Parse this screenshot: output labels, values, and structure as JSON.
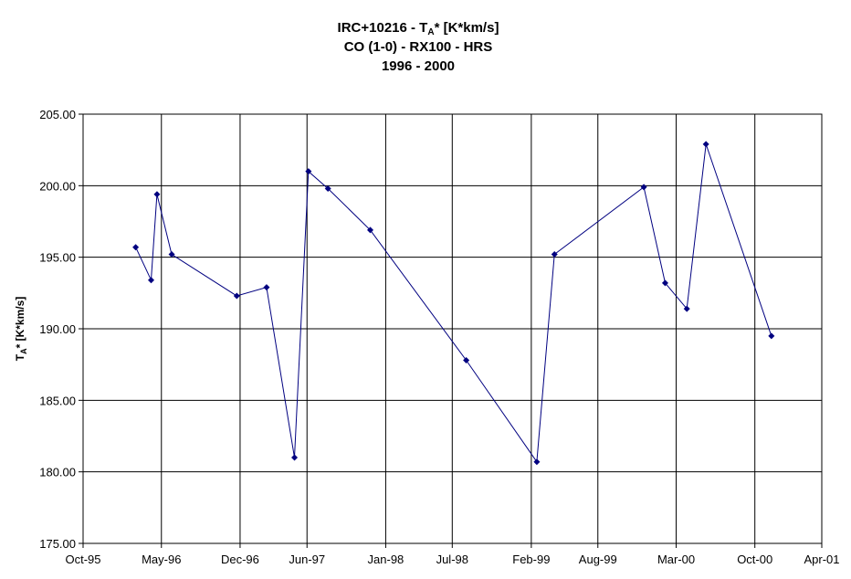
{
  "chart_data": {
    "type": "line",
    "title_lines": [
      {
        "pre": "IRC+10216 - T",
        "sub": "A",
        "post": "* [K*km/s]"
      },
      {
        "pre": "CO (1-0) - RX100 - HRS",
        "sub": "",
        "post": ""
      },
      {
        "pre": "1996 - 2000",
        "sub": "",
        "post": ""
      }
    ],
    "ylabel": {
      "pre": "T",
      "sub": "A",
      "post": "* [K*km/s]"
    },
    "ylim": [
      175,
      205
    ],
    "yticks": [
      "175.00",
      "180.00",
      "185.00",
      "190.00",
      "195.00",
      "200.00",
      "205.00"
    ],
    "xticks": [
      "Oct-95",
      "May-96",
      "Dec-96",
      "Jun-97",
      "Jan-98",
      "Jul-98",
      "Feb-99",
      "Aug-99",
      "Mar-00",
      "Oct-00",
      "Apr-01"
    ],
    "grid": true,
    "legend": "none",
    "line_color": "#000080",
    "series": [
      {
        "points": [
          {
            "x": "1996-02-21",
            "y": 195.7
          },
          {
            "x": "1996-04-03",
            "y": 193.4
          },
          {
            "x": "1996-04-19",
            "y": 199.4
          },
          {
            "x": "1996-05-29",
            "y": 195.2
          },
          {
            "x": "1996-11-22",
            "y": 192.3
          },
          {
            "x": "1997-02-11",
            "y": 192.9
          },
          {
            "x": "1997-04-28",
            "y": 181.0
          },
          {
            "x": "1997-06-05",
            "y": 201.0
          },
          {
            "x": "1997-07-28",
            "y": 199.8
          },
          {
            "x": "1997-11-20",
            "y": 196.9
          },
          {
            "x": "1998-08-08",
            "y": 187.8
          },
          {
            "x": "1999-02-16",
            "y": 180.7
          },
          {
            "x": "1999-04-05",
            "y": 195.2
          },
          {
            "x": "1999-12-04",
            "y": 199.9
          },
          {
            "x": "2000-01-31",
            "y": 193.2
          },
          {
            "x": "2000-03-30",
            "y": 191.4
          },
          {
            "x": "2000-05-21",
            "y": 202.9
          },
          {
            "x": "2000-11-15",
            "y": 189.5
          }
        ]
      }
    ]
  }
}
